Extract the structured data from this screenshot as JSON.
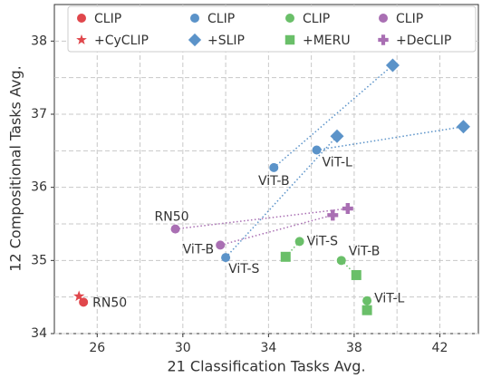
{
  "chart_data": {
    "type": "scatter",
    "xlabel": "21 Classification Tasks Avg.",
    "ylabel": "12 Compositional Tasks Avg.",
    "xlim": [
      24,
      43.8
    ],
    "ylim": [
      34,
      38.5
    ],
    "xticks": [
      26,
      30,
      34,
      38,
      42
    ],
    "yticks": [
      34,
      35,
      36,
      37,
      38
    ],
    "xminorticks": [
      28,
      32,
      36,
      40
    ],
    "yminorticks": [
      34.5,
      35.5,
      36.5,
      37.5
    ],
    "grid": true,
    "legend": "top",
    "series": [
      {
        "name": "CLIP",
        "color": "#e0474c",
        "marker": "circle",
        "x": [
          25.36
        ],
        "y": [
          34.43
        ],
        "labels": [
          "RN50"
        ]
      },
      {
        "name": "+CyCLIP",
        "color": "#e0474c",
        "marker": "star",
        "x": [
          25.15
        ],
        "y": [
          34.51
        ]
      },
      {
        "name": "CLIP",
        "color": "#5b93c9",
        "marker": "circle",
        "x": [
          32.0,
          34.25,
          36.25
        ],
        "y": [
          35.04,
          36.27,
          36.51
        ],
        "labels": [
          "ViT-S",
          "ViT-B",
          "ViT-L"
        ]
      },
      {
        "name": "+SLIP",
        "color": "#5b93c9",
        "marker": "diamond",
        "x": [
          37.2,
          39.8,
          43.1
        ],
        "y": [
          36.7,
          37.67,
          36.83
        ]
      },
      {
        "name": "CLIP",
        "color": "#6abf69",
        "marker": "circle",
        "x": [
          35.45,
          37.4,
          38.6
        ],
        "y": [
          35.26,
          35.0,
          34.45
        ],
        "labels": [
          "ViT-S",
          "ViT-B",
          "ViT-L"
        ]
      },
      {
        "name": "+MERU",
        "color": "#6abf69",
        "marker": "square",
        "x": [
          34.8,
          38.1,
          38.6
        ],
        "y": [
          35.05,
          34.8,
          34.32
        ]
      },
      {
        "name": "CLIP",
        "color": "#a96fb3",
        "marker": "circle",
        "x": [
          29.65,
          31.75
        ],
        "y": [
          35.43,
          35.21
        ],
        "labels": [
          "RN50",
          "ViT-B"
        ]
      },
      {
        "name": "+DeCLIP",
        "color": "#a96fb3",
        "marker": "plus",
        "x": [
          37.7,
          37.0
        ],
        "y": [
          35.71,
          35.62
        ]
      }
    ]
  }
}
